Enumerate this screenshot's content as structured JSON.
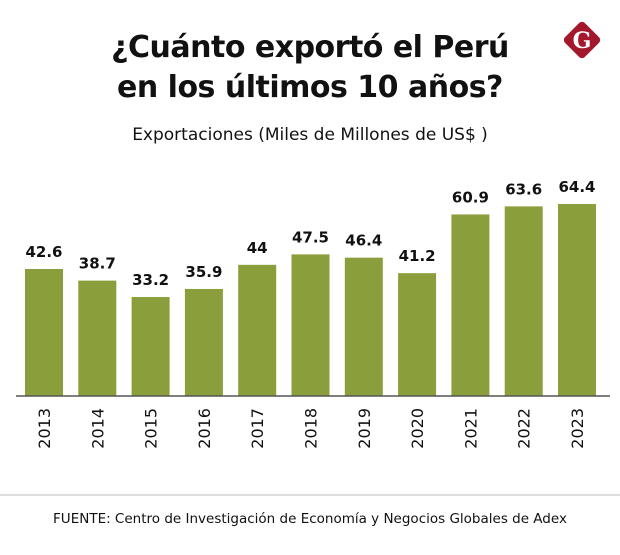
{
  "header": {
    "title_line1": "¿Cuánto exportó el Perú",
    "title_line2": "en los últimos 10 años?",
    "subtitle": "Exportaciones (Miles de Millones de US$ )",
    "logo_icon": "gestion-g-logo-icon",
    "logo_letter": "G"
  },
  "colors": {
    "bar": "#8a9e3b",
    "logo": "#a3182c",
    "text": "#111111",
    "axis": "#555555"
  },
  "chart_data": {
    "type": "bar",
    "title": "¿Cuánto exportó el Perú en los últimos 10 años?",
    "subtitle": "Exportaciones (Miles de Millones de US$ )",
    "xlabel": "",
    "ylabel": "Exportaciones (Miles de Millones de US$)",
    "categories": [
      "2013",
      "2014",
      "2015",
      "2016",
      "2017",
      "2018",
      "2019",
      "2020",
      "2021",
      "2022",
      "2023"
    ],
    "values": [
      42.6,
      38.7,
      33.2,
      35.9,
      44,
      47.5,
      46.4,
      41.2,
      60.9,
      63.6,
      64.4
    ],
    "data_labels": [
      "42.6",
      "38.7",
      "33.2",
      "35.9",
      "44",
      "47.5",
      "46.4",
      "41.2",
      "60.9",
      "63.6",
      "64.4"
    ],
    "ylim": [
      0,
      64.4
    ],
    "grid": false,
    "legend": "none"
  },
  "footer": {
    "source": "FUENTE: Centro de Investigación de Economía y Negocios Globales de Adex"
  }
}
